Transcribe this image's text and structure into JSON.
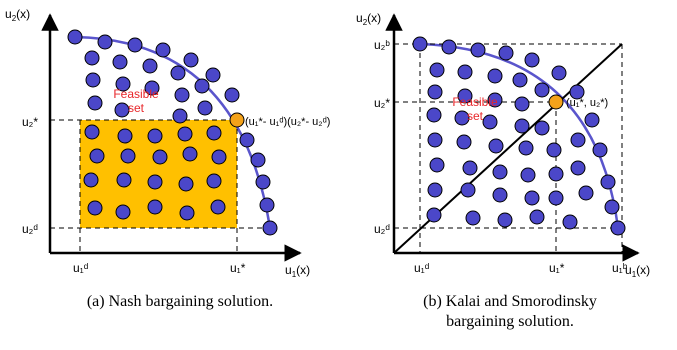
{
  "colors": {
    "dot_fill": "#4b47c9",
    "frontier": "#5a55cc",
    "rect_fill": "#ffc000",
    "opt_fill": "#f4a21a",
    "feasible_text": "#e8262a"
  },
  "left": {
    "y_axis_label": "u",
    "y_axis_sub": "2",
    "y_axis_suffix": "(x)",
    "x_axis_label": "u",
    "x_axis_sub": "1",
    "x_axis_suffix": "(x)",
    "feasible_line1": "Feasible",
    "feasible_line2": "set",
    "opt_label": "(u₁*- u₁ᵈ)(u₂*- u₂ᵈ)",
    "u2_star": "u₂*",
    "u2_d": "u₂ᵈ",
    "u1_d": "u₁ᵈ",
    "u1_star": "u₁*",
    "caption": "(a) Nash bargaining solution."
  },
  "right": {
    "y_axis_label": "u",
    "y_axis_sub": "2",
    "y_axis_suffix": "(x)",
    "x_axis_label": "u",
    "x_axis_sub": "1",
    "x_axis_suffix": "(x)",
    "feasible_line1": "Feasible",
    "feasible_line2": "set",
    "opt_label": "(u₁*, u₂*)",
    "u2_b": "u₂ᵇ",
    "u2_star": "u₂*",
    "u2_d": "u₂ᵈ",
    "u1_d": "u₁ᵈ",
    "u1_star": "u₁*",
    "u1_b": "u₁ᵇ",
    "caption_line1": "(b) Kalai and Smorodinsky",
    "caption_line2": "bargaining solution."
  }
}
